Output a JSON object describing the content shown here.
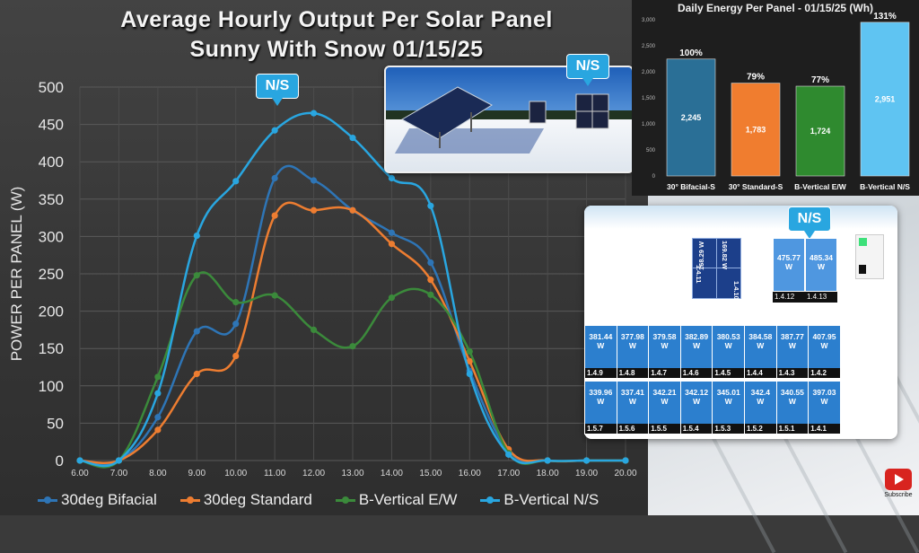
{
  "main_title_line1": "Average Hourly Output Per Solar Panel",
  "main_title_line2": "Sunny With Snow 01/15/25",
  "ns_label": "N/S",
  "chart_data": [
    {
      "type": "line",
      "title": "Average Hourly Output Per Solar Panel Sunny With Snow 01/15/25",
      "ylabel": "POWER PER PANEL (W)",
      "xlabel": "",
      "x": [
        "6.00",
        "7.00",
        "8.00",
        "9.00",
        "10.00",
        "11.00",
        "12.00",
        "13.00",
        "14.00",
        "15.00",
        "16.00",
        "17.00",
        "18.00",
        "19.00",
        "20.00"
      ],
      "ylim": [
        0,
        500
      ],
      "yticks": [
        0,
        50,
        100,
        150,
        200,
        250,
        300,
        350,
        400,
        450,
        500
      ],
      "grid": true,
      "legend": "bottom",
      "series": [
        {
          "name": "30deg Bifacial",
          "color": "#2e75b6",
          "values": [
            0,
            0,
            58,
            173,
            183,
            378,
            375,
            335,
            305,
            265,
            120,
            12,
            0,
            0,
            0
          ]
        },
        {
          "name": "30deg Standard",
          "color": "#ed7d31",
          "values": [
            0,
            0,
            41,
            116,
            140,
            328,
            335,
            335,
            290,
            242,
            133,
            15,
            0,
            0,
            0
          ]
        },
        {
          "name": "B-Vertical E/W",
          "color": "#3b8a3b",
          "values": [
            0,
            0,
            112,
            248,
            212,
            221,
            175,
            153,
            218,
            222,
            146,
            10,
            0,
            0,
            0
          ]
        },
        {
          "name": "B-Vertical N/S",
          "color": "#29a6e0",
          "values": [
            0,
            0,
            90,
            301,
            374,
            442,
            465,
            432,
            378,
            341,
            116,
            8,
            0,
            0,
            0
          ]
        }
      ]
    },
    {
      "type": "bar",
      "title": "Daily Energy Per Panel - 01/15/25 (Wh)",
      "categories": [
        "30° Bifacial-S",
        "30° Standard-S",
        "B-Vertical E/W",
        "B-Vertical N/S"
      ],
      "values": [
        2245,
        1783,
        1724,
        2951
      ],
      "value_labels": [
        "2,245",
        "1,783",
        "1,724",
        "2,951"
      ],
      "percent_labels": [
        "100%",
        "79%",
        "77%",
        "131%"
      ],
      "colors": [
        "#2a6f96",
        "#f07d2f",
        "#2f8a2f",
        "#5fc4f2"
      ],
      "ylim": [
        0,
        3000
      ],
      "yticks": [
        "0",
        "500",
        "1,000",
        "1,500",
        "2,000",
        "2,500",
        "3,000"
      ],
      "legend": "none"
    }
  ],
  "inverter": {
    "dark_panels": [
      {
        "id": "1.4.11",
        "watts": "169.82 W"
      },
      {
        "id": "1.4.10",
        "watts": "168.29 W"
      }
    ],
    "top_panels": [
      {
        "watts": "475.77",
        "unit": "W",
        "id": "1.4.12"
      },
      {
        "watts": "485.34",
        "unit": "W",
        "id": "1.4.13"
      }
    ],
    "row1": [
      {
        "watts": "381.44",
        "id": "1.4.9"
      },
      {
        "watts": "377.98",
        "id": "1.4.8"
      },
      {
        "watts": "379.58",
        "id": "1.4.7"
      },
      {
        "watts": "382.89",
        "id": "1.4.6"
      },
      {
        "watts": "380.53",
        "id": "1.4.5"
      },
      {
        "watts": "384.58",
        "id": "1.4.4"
      },
      {
        "watts": "387.77",
        "id": "1.4.3"
      },
      {
        "watts": "407.95",
        "id": "1.4.2"
      }
    ],
    "row2": [
      {
        "watts": "339.96",
        "id": "1.5.7"
      },
      {
        "watts": "337.41",
        "id": "1.5.6"
      },
      {
        "watts": "342.21",
        "id": "1.5.5"
      },
      {
        "watts": "342.12",
        "id": "1.5.4"
      },
      {
        "watts": "345.01",
        "id": "1.5.3"
      },
      {
        "watts": "342.4",
        "id": "1.5.2"
      },
      {
        "watts": "340.55",
        "id": "1.5.1"
      },
      {
        "watts": "397.03",
        "id": "1.4.1"
      }
    ],
    "unit": "W"
  },
  "subscribe_label": "Subscribe"
}
